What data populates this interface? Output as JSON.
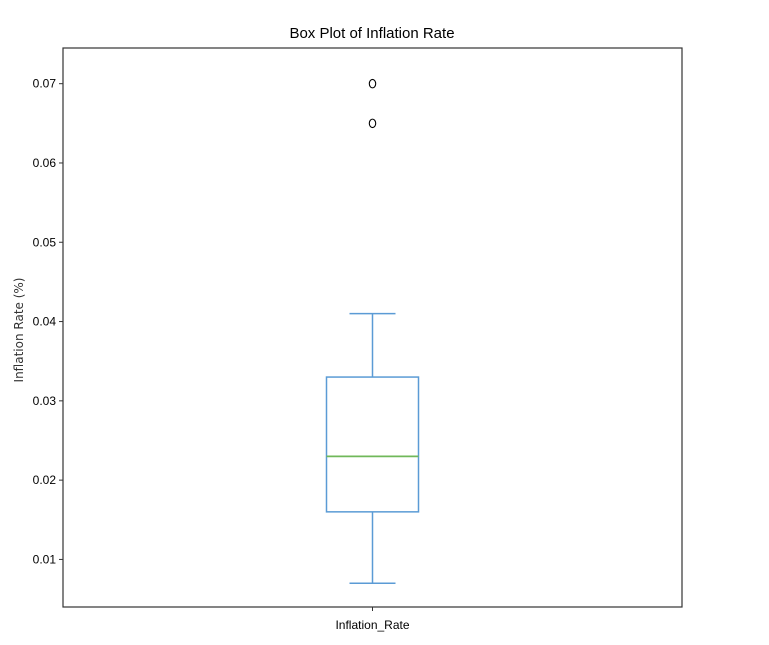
{
  "chart_data": {
    "type": "box",
    "title": "Box Plot of Inflation Rate",
    "xlabel": "",
    "ylabel": "Inflation Rate (%)",
    "categories": [
      "Inflation_Rate"
    ],
    "ylim": [
      0.004,
      0.0745
    ],
    "yticks": [
      "0.01",
      "0.02",
      "0.03",
      "0.04",
      "0.05",
      "0.06",
      "0.07"
    ],
    "box": {
      "whisker_low": 0.007,
      "q1": 0.016,
      "median": 0.023,
      "q3": 0.033,
      "whisker_high": 0.041,
      "outliers": [
        0.065,
        0.07
      ]
    },
    "colors": {
      "box": "#5b9bd5",
      "median": "#70b85a",
      "outlier": "#000000",
      "axes": "#333333"
    },
    "grid": false,
    "legend": "none"
  }
}
